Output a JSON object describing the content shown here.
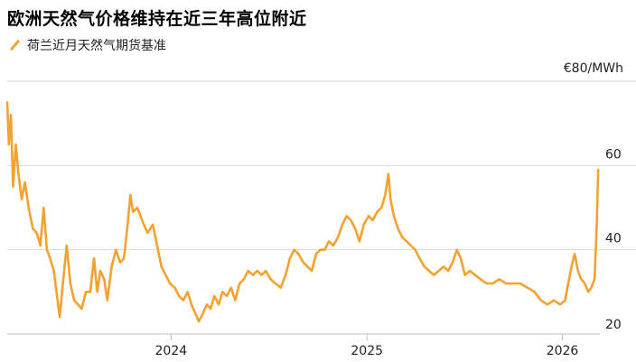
{
  "header": {
    "title": "欧洲天然气价格维持在近三年高位附近"
  },
  "legend": {
    "series_label": "荷兰近月天然气期货基准"
  },
  "colors": {
    "series": "#f4a22f",
    "grid": "#d9d9d9"
  },
  "chart_data": {
    "type": "line",
    "title": "欧洲天然气价格维持在近三年高位附近",
    "ylabel": "",
    "xlabel": "",
    "ylim": [
      20,
      80
    ],
    "xlim": [
      "2023-03-01",
      "2026-03-12"
    ],
    "y_ticks": [
      {
        "value": 20,
        "label": "20"
      },
      {
        "value": 40,
        "label": "40"
      },
      {
        "value": 60,
        "label": "60"
      },
      {
        "value": 80,
        "label": "€80/MWh"
      }
    ],
    "x_ticks": [
      {
        "date": "2024-01-01",
        "label": "2024"
      },
      {
        "date": "2025-01-01",
        "label": "2025"
      },
      {
        "date": "2026-01-01",
        "label": "2026"
      }
    ],
    "grid": true,
    "series": [
      {
        "name": "荷兰近月天然气期货基准",
        "points": [
          [
            "2023-03-01",
            75
          ],
          [
            "2023-03-04",
            65
          ],
          [
            "2023-03-08",
            72
          ],
          [
            "2023-03-12",
            55
          ],
          [
            "2023-03-17",
            65
          ],
          [
            "2023-03-22",
            58
          ],
          [
            "2023-03-28",
            52
          ],
          [
            "2023-04-03",
            56
          ],
          [
            "2023-04-10",
            50
          ],
          [
            "2023-04-18",
            45
          ],
          [
            "2023-04-25",
            44
          ],
          [
            "2023-05-02",
            41
          ],
          [
            "2023-05-08",
            50
          ],
          [
            "2023-05-14",
            40
          ],
          [
            "2023-05-20",
            38
          ],
          [
            "2023-05-27",
            35
          ],
          [
            "2023-06-02",
            29
          ],
          [
            "2023-06-07",
            24
          ],
          [
            "2023-06-13",
            32
          ],
          [
            "2023-06-20",
            41
          ],
          [
            "2023-06-27",
            32
          ],
          [
            "2023-07-04",
            28
          ],
          [
            "2023-07-11",
            27
          ],
          [
            "2023-07-18",
            26
          ],
          [
            "2023-07-26",
            30
          ],
          [
            "2023-08-03",
            30
          ],
          [
            "2023-08-10",
            38
          ],
          [
            "2023-08-16",
            30
          ],
          [
            "2023-08-22",
            35
          ],
          [
            "2023-08-29",
            33
          ],
          [
            "2023-09-04",
            28
          ],
          [
            "2023-09-12",
            36
          ],
          [
            "2023-09-20",
            40
          ],
          [
            "2023-09-28",
            37
          ],
          [
            "2023-10-05",
            38
          ],
          [
            "2023-10-12",
            46
          ],
          [
            "2023-10-17",
            53
          ],
          [
            "2023-10-22",
            49
          ],
          [
            "2023-10-30",
            50
          ],
          [
            "2023-11-08",
            47
          ],
          [
            "2023-11-18",
            44
          ],
          [
            "2023-11-28",
            46
          ],
          [
            "2023-12-06",
            41
          ],
          [
            "2023-12-14",
            36
          ],
          [
            "2023-12-22",
            34
          ],
          [
            "2023-12-30",
            32
          ],
          [
            "2024-01-08",
            31
          ],
          [
            "2024-01-16",
            29
          ],
          [
            "2024-01-24",
            28
          ],
          [
            "2024-02-01",
            30
          ],
          [
            "2024-02-08",
            27
          ],
          [
            "2024-02-15",
            25
          ],
          [
            "2024-02-22",
            23
          ],
          [
            "2024-03-01",
            25
          ],
          [
            "2024-03-08",
            27
          ],
          [
            "2024-03-15",
            26
          ],
          [
            "2024-03-22",
            29
          ],
          [
            "2024-03-30",
            27
          ],
          [
            "2024-04-06",
            30
          ],
          [
            "2024-04-14",
            29
          ],
          [
            "2024-04-22",
            31
          ],
          [
            "2024-04-30",
            28
          ],
          [
            "2024-05-08",
            32
          ],
          [
            "2024-05-16",
            33
          ],
          [
            "2024-05-24",
            35
          ],
          [
            "2024-06-02",
            34
          ],
          [
            "2024-06-10",
            35
          ],
          [
            "2024-06-18",
            34
          ],
          [
            "2024-06-26",
            35
          ],
          [
            "2024-07-05",
            33
          ],
          [
            "2024-07-14",
            32
          ],
          [
            "2024-07-24",
            31
          ],
          [
            "2024-08-02",
            34
          ],
          [
            "2024-08-10",
            38
          ],
          [
            "2024-08-18",
            40
          ],
          [
            "2024-08-26",
            39
          ],
          [
            "2024-09-04",
            37
          ],
          [
            "2024-09-12",
            36
          ],
          [
            "2024-09-20",
            35
          ],
          [
            "2024-09-28",
            39
          ],
          [
            "2024-10-06",
            40
          ],
          [
            "2024-10-14",
            40
          ],
          [
            "2024-10-22",
            42
          ],
          [
            "2024-10-30",
            41
          ],
          [
            "2024-11-08",
            43
          ],
          [
            "2024-11-16",
            46
          ],
          [
            "2024-11-24",
            48
          ],
          [
            "2024-12-02",
            47
          ],
          [
            "2024-12-10",
            45
          ],
          [
            "2024-12-18",
            42
          ],
          [
            "2024-12-26",
            46
          ],
          [
            "2025-01-04",
            48
          ],
          [
            "2025-01-12",
            47
          ],
          [
            "2025-01-20",
            49
          ],
          [
            "2025-01-28",
            50
          ],
          [
            "2025-02-04",
            53
          ],
          [
            "2025-02-10",
            58
          ],
          [
            "2025-02-14",
            52
          ],
          [
            "2025-02-20",
            48
          ],
          [
            "2025-02-28",
            45
          ],
          [
            "2025-03-08",
            43
          ],
          [
            "2025-03-16",
            42
          ],
          [
            "2025-03-24",
            41
          ],
          [
            "2025-04-01",
            40
          ],
          [
            "2025-04-09",
            38
          ],
          [
            "2025-04-18",
            36
          ],
          [
            "2025-04-27",
            35
          ],
          [
            "2025-05-06",
            34
          ],
          [
            "2025-05-15",
            35
          ],
          [
            "2025-05-24",
            36
          ],
          [
            "2025-06-02",
            35
          ],
          [
            "2025-06-10",
            37
          ],
          [
            "2025-06-18",
            40
          ],
          [
            "2025-06-25",
            38
          ],
          [
            "2025-07-03",
            34
          ],
          [
            "2025-07-12",
            35
          ],
          [
            "2025-07-22",
            34
          ],
          [
            "2025-08-01",
            33
          ],
          [
            "2025-08-12",
            32
          ],
          [
            "2025-08-24",
            32
          ],
          [
            "2025-09-05",
            33
          ],
          [
            "2025-09-18",
            32
          ],
          [
            "2025-10-01",
            32
          ],
          [
            "2025-10-14",
            32
          ],
          [
            "2025-10-28",
            31
          ],
          [
            "2025-11-10",
            30
          ],
          [
            "2025-11-22",
            28
          ],
          [
            "2025-12-04",
            27
          ],
          [
            "2025-12-16",
            28
          ],
          [
            "2025-12-28",
            27
          ],
          [
            "2026-01-06",
            28
          ],
          [
            "2026-01-12",
            32
          ],
          [
            "2026-01-18",
            36
          ],
          [
            "2026-01-24",
            39
          ],
          [
            "2026-01-30",
            35
          ],
          [
            "2026-02-05",
            33
          ],
          [
            "2026-02-12",
            32
          ],
          [
            "2026-02-18",
            30
          ],
          [
            "2026-02-24",
            31
          ],
          [
            "2026-03-02",
            33
          ],
          [
            "2026-03-06",
            45
          ],
          [
            "2026-03-09",
            59
          ]
        ]
      }
    ]
  }
}
